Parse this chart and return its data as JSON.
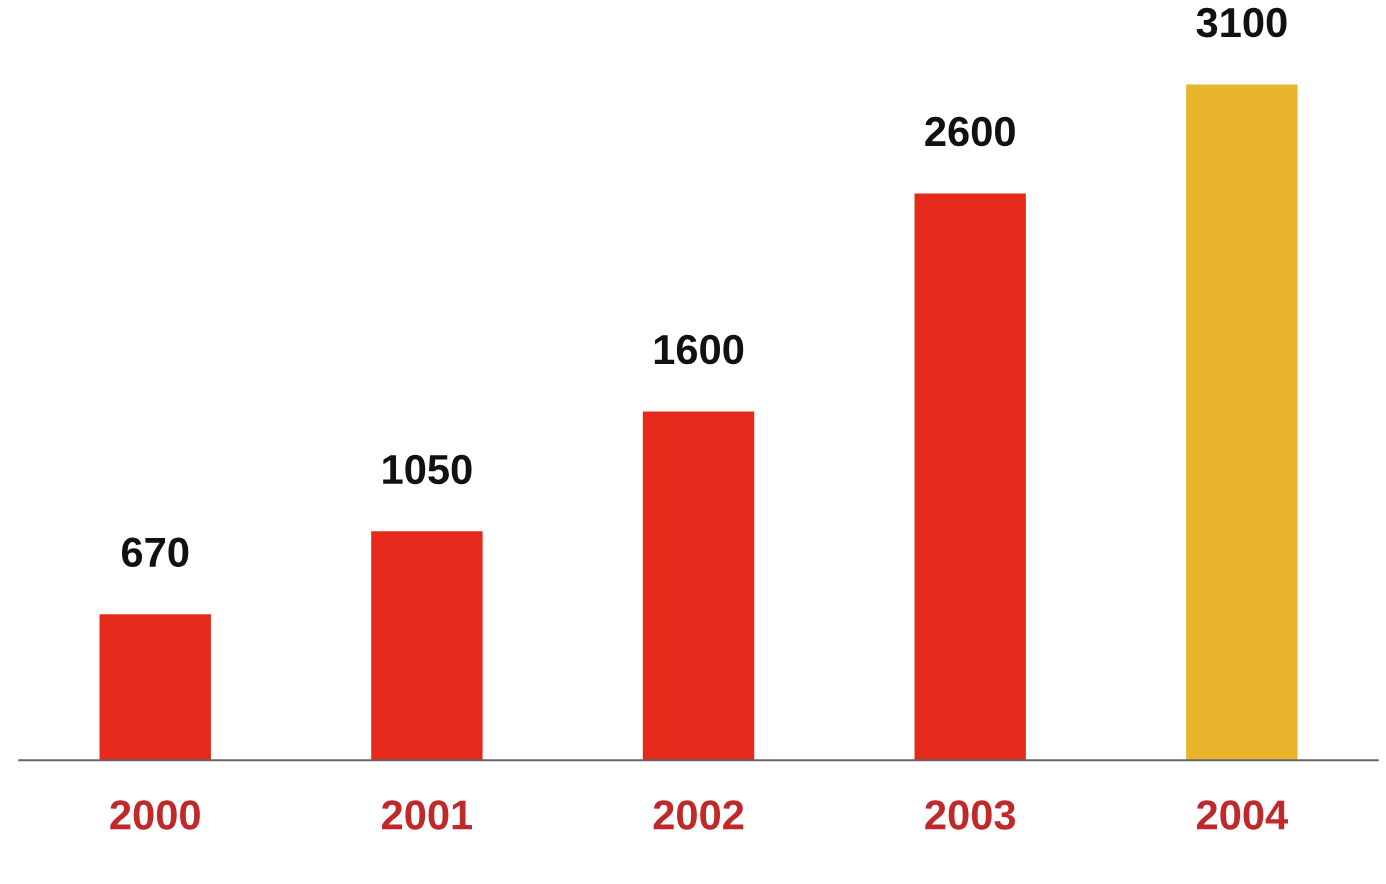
{
  "chart_data": {
    "type": "bar",
    "categories": [
      "2000",
      "2001",
      "2002",
      "2003",
      "2004"
    ],
    "values": [
      670,
      1050,
      1600,
      2600,
      3100
    ],
    "colors": [
      "#e52a1c",
      "#e52a1c",
      "#e52a1c",
      "#e52a1c",
      "#e8b42c"
    ],
    "data_labels": true,
    "grid": false,
    "legend": false
  }
}
